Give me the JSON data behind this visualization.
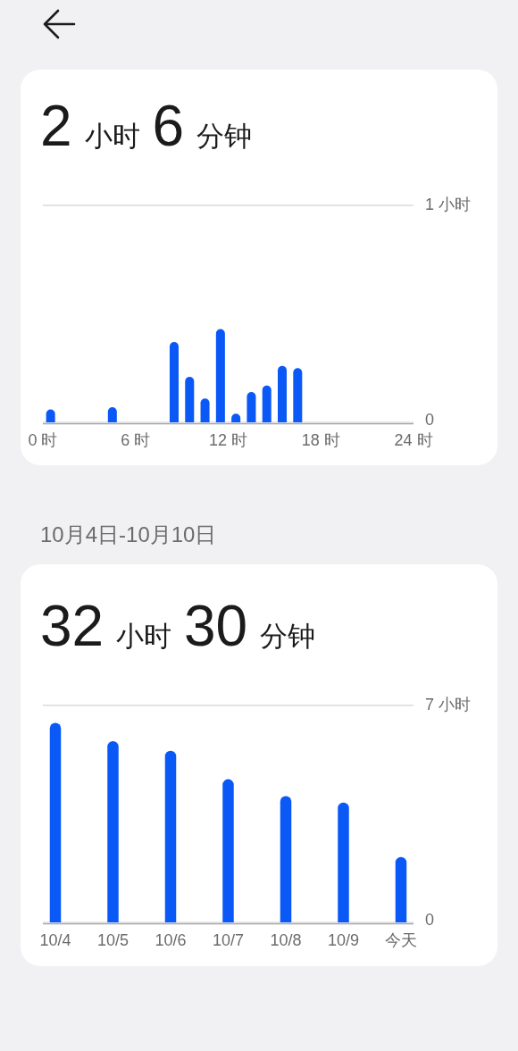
{
  "chart_data": [
    {
      "type": "bar",
      "title": "2 小时 6 分钟",
      "x": [
        0.5,
        4.5,
        8.5,
        9.5,
        10.5,
        11.5,
        12.5,
        13.5,
        14.5,
        15.5,
        16.5
      ],
      "values": [
        0.06,
        0.07,
        0.37,
        0.21,
        0.11,
        0.43,
        0.04,
        0.14,
        0.17,
        0.26,
        0.25
      ],
      "color": "#0a59f7",
      "xlim": [
        0,
        24
      ],
      "xticks": [
        {
          "value": 0,
          "label": "0 时"
        },
        {
          "value": 6,
          "label": "6 时"
        },
        {
          "value": 12,
          "label": "12 时"
        },
        {
          "value": 18,
          "label": "18 时"
        },
        {
          "value": 24,
          "label": "24 时"
        }
      ],
      "ylim": [
        0,
        1
      ],
      "yticks": [
        0,
        {
          "value": 1,
          "label": "1 小时"
        }
      ],
      "grid": "y"
    },
    {
      "type": "bar",
      "subtitle": "10月4日-10月10日",
      "title": "32 小时 30 分钟",
      "categories": [
        "10/4",
        "10/5",
        "10/6",
        "10/7",
        "10/8",
        "10/9",
        "今天"
      ],
      "values": [
        6.44,
        5.85,
        5.54,
        4.62,
        4.08,
        3.87,
        2.11
      ],
      "color": "#0a59f7",
      "ylim": [
        0,
        7
      ],
      "yticks": [
        0,
        {
          "value": 7,
          "label": "7 小时"
        }
      ],
      "grid": "y"
    }
  ]
}
